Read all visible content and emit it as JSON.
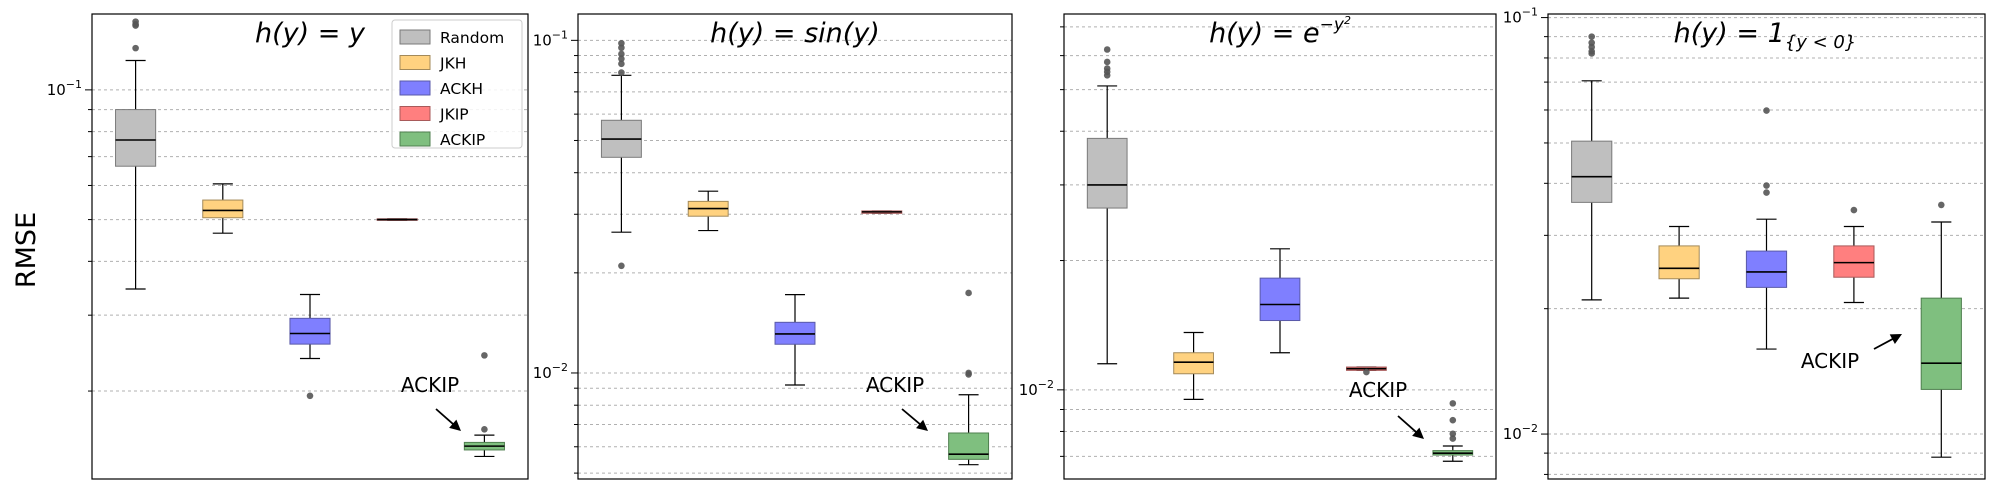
{
  "figure": {
    "ylabel": "RMSE"
  },
  "legend": {
    "entries": [
      {
        "label": "Random",
        "color": "#bfbfbf"
      },
      {
        "label": "JKH",
        "color": "#ffd280"
      },
      {
        "label": "ACKH",
        "color": "#7f7fff"
      },
      {
        "label": "JKIP",
        "color": "#ff7f7f"
      },
      {
        "label": "ACKIP",
        "color": "#7fbf7f"
      }
    ]
  },
  "chart_data": [
    {
      "type": "box",
      "title": "h(y) = y",
      "title_parts": {
        "base": "h(y) = y",
        "sup": "",
        "sub": ""
      },
      "ylabel": "RMSE",
      "yscale": "log",
      "ylim": [
        0.0125,
        0.15
      ],
      "yticks": [
        {
          "value": 0.1,
          "label": "10",
          "exp": "−1"
        }
      ],
      "grid": "y-minor dotted",
      "categories": [
        "Random",
        "JKH",
        "ACKH",
        "JKIP",
        "ACKIP"
      ],
      "boxes": [
        {
          "name": "Random",
          "whislo": 0.0345,
          "q1": 0.0665,
          "med": 0.0765,
          "q3": 0.09,
          "whishi": 0.117,
          "fliers": [
            0.144,
            0.142,
            0.141,
            0.125
          ]
        },
        {
          "name": "JKH",
          "whislo": 0.0465,
          "q1": 0.0505,
          "med": 0.0525,
          "q3": 0.0555,
          "whishi": 0.0605,
          "fliers": []
        },
        {
          "name": "ACKH",
          "whislo": 0.0238,
          "q1": 0.0257,
          "med": 0.0272,
          "q3": 0.0295,
          "whishi": 0.0335,
          "fliers": [
            0.0195
          ]
        },
        {
          "name": "JKIP",
          "whislo": 0.0498,
          "q1": 0.0498,
          "med": 0.05,
          "q3": 0.0502,
          "whishi": 0.0502,
          "fliers": []
        },
        {
          "name": "ACKIP",
          "whislo": 0.0141,
          "q1": 0.0146,
          "med": 0.0149,
          "q3": 0.0152,
          "whishi": 0.0158,
          "fliers": [
            0.0242,
            0.0163
          ]
        }
      ],
      "annotation": {
        "text": "ACKIP",
        "target": "ACKIP"
      },
      "legend": "upper right"
    },
    {
      "type": "box",
      "title": "h(y) = sin(y)",
      "title_parts": {
        "base": "h(y) = sin(y)",
        "sup": "",
        "sub": ""
      },
      "yscale": "log",
      "ylim": [
        0.0048,
        0.12
      ],
      "yticks": [
        {
          "value": 0.1,
          "label": "10",
          "exp": "−1"
        },
        {
          "value": 0.01,
          "label": "10",
          "exp": "−2"
        }
      ],
      "grid": "y-minor dotted",
      "categories": [
        "Random",
        "JKH",
        "ACKH",
        "JKIP",
        "ACKIP"
      ],
      "boxes": [
        {
          "name": "Random",
          "whislo": 0.0265,
          "q1": 0.0445,
          "med": 0.0505,
          "q3": 0.0575,
          "whishi": 0.0785,
          "fliers": [
            0.098,
            0.095,
            0.091,
            0.088,
            0.085,
            0.08,
            0.021
          ]
        },
        {
          "name": "JKH",
          "whislo": 0.0268,
          "q1": 0.0296,
          "med": 0.0312,
          "q3": 0.0328,
          "whishi": 0.0352,
          "fliers": []
        },
        {
          "name": "ACKH",
          "whislo": 0.0092,
          "q1": 0.0122,
          "med": 0.0131,
          "q3": 0.0142,
          "whishi": 0.0172,
          "fliers": []
        },
        {
          "name": "JKIP",
          "whislo": 0.0302,
          "q1": 0.0302,
          "med": 0.0305,
          "q3": 0.0307,
          "whishi": 0.0307,
          "fliers": []
        },
        {
          "name": "ACKIP",
          "whislo": 0.0053,
          "q1": 0.0055,
          "med": 0.0057,
          "q3": 0.0066,
          "whishi": 0.0086,
          "fliers": [
            0.0174,
            0.01,
            0.0099
          ]
        }
      ],
      "annotation": {
        "text": "ACKIP",
        "target": "ACKIP"
      }
    },
    {
      "type": "box",
      "title": "h(y) = e^(−y²)",
      "title_parts": {
        "base": "h(y) = e",
        "sup": "−y",
        "sub": ""
      },
      "yscale": "log",
      "ylim": [
        0.0062,
        0.075
      ],
      "yticks": [
        {
          "value": 0.01,
          "label": "10",
          "exp": "−2"
        }
      ],
      "grid": "y-minor dotted",
      "categories": [
        "Random",
        "JKH",
        "ACKH",
        "JKIP",
        "ACKIP"
      ],
      "boxes": [
        {
          "name": "Random",
          "whislo": 0.0115,
          "q1": 0.0265,
          "med": 0.03,
          "q3": 0.0385,
          "whishi": 0.051,
          "fliers": [
            0.062,
            0.058,
            0.056,
            0.055,
            0.054
          ]
        },
        {
          "name": "JKH",
          "whislo": 0.0095,
          "q1": 0.0109,
          "med": 0.0116,
          "q3": 0.0122,
          "whishi": 0.0136,
          "fliers": []
        },
        {
          "name": "ACKH",
          "whislo": 0.0122,
          "q1": 0.0145,
          "med": 0.0158,
          "q3": 0.0182,
          "whishi": 0.0213,
          "fliers": []
        },
        {
          "name": "JKIP",
          "whislo": 0.0111,
          "q1": 0.0111,
          "med": 0.0112,
          "q3": 0.0113,
          "whishi": 0.0113,
          "fliers": [
            0.011
          ]
        },
        {
          "name": "ACKIP",
          "whislo": 0.00682,
          "q1": 0.00705,
          "med": 0.00712,
          "q3": 0.00722,
          "whishi": 0.0074,
          "fliers": [
            0.0093,
            0.0085,
            0.0079,
            0.0077
          ]
        }
      ],
      "annotation": {
        "text": "ACKIP",
        "target": "ACKIP"
      }
    },
    {
      "type": "box",
      "title": "h(y) = 1{y<0}",
      "title_parts": {
        "base": "h(y) = 1",
        "sup": "",
        "sub": "{y < 0}"
      },
      "yscale": "log",
      "ylim": [
        0.0078,
        0.102
      ],
      "yticks": [
        {
          "value": 0.1,
          "label": "10",
          "exp": "−1"
        },
        {
          "value": 0.01,
          "label": "10",
          "exp": "−2"
        }
      ],
      "grid": "y-minor dotted",
      "categories": [
        "Random",
        "JKH",
        "ACKH",
        "JKIP",
        "ACKIP"
      ],
      "boxes": [
        {
          "name": "Random",
          "whislo": 0.021,
          "q1": 0.036,
          "med": 0.0415,
          "q3": 0.0505,
          "whishi": 0.0705,
          "fliers": [
            0.09,
            0.087,
            0.085,
            0.083,
            0.082
          ]
        },
        {
          "name": "JKH",
          "whislo": 0.0212,
          "q1": 0.0236,
          "med": 0.025,
          "q3": 0.0283,
          "whishi": 0.0315,
          "fliers": []
        },
        {
          "name": "ACKH",
          "whislo": 0.016,
          "q1": 0.0225,
          "med": 0.0245,
          "q3": 0.0275,
          "whishi": 0.0328,
          "fliers": [
            0.0598,
            0.0395,
            0.038
          ]
        },
        {
          "name": "JKIP",
          "whislo": 0.0207,
          "q1": 0.0238,
          "med": 0.0258,
          "q3": 0.0283,
          "whishi": 0.0315,
          "fliers": [
            0.0345
          ]
        },
        {
          "name": "ACKIP",
          "whislo": 0.0088,
          "q1": 0.0128,
          "med": 0.0148,
          "q3": 0.0212,
          "whishi": 0.0323,
          "fliers": [
            0.0355
          ]
        }
      ],
      "annotation": {
        "text": "ACKIP",
        "target": "ACKIP"
      }
    }
  ]
}
